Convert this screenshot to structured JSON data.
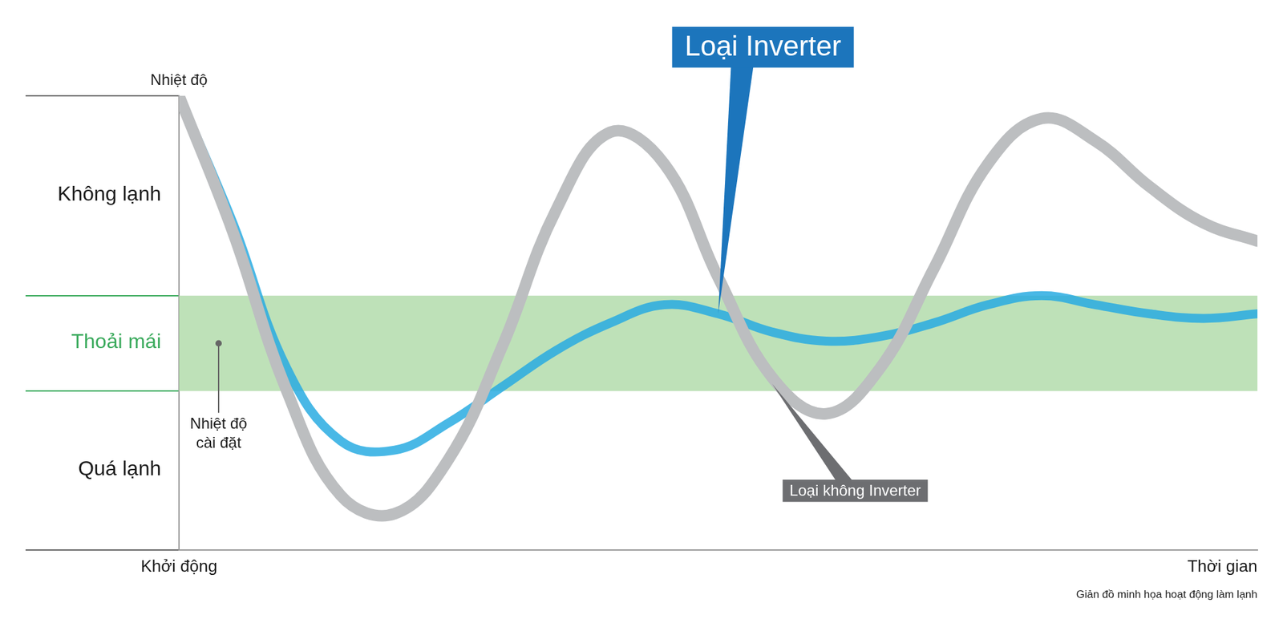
{
  "chart_data": {
    "type": "line",
    "y_label": "Nhiệt độ",
    "x_label": "Thời gian",
    "start_label": "Khởi động",
    "set_point_label": "Nhiệt độ cài đặt",
    "caption": "Giản đồ minh họa hoạt động làm lạnh",
    "x": [
      0,
      5,
      10,
      15,
      20,
      25,
      30,
      35,
      40,
      45,
      50,
      55,
      60,
      65,
      70,
      75,
      80,
      85,
      90,
      95,
      100
    ],
    "xlim": [
      0,
      100
    ],
    "ylim": [
      0,
      100
    ],
    "yticks": [
      0,
      35,
      56,
      100
    ],
    "grid": true,
    "tick_labels": false,
    "zones": [
      {
        "label": "Không lạnh",
        "from": 56,
        "to": 100
      },
      {
        "label": "Thoải mái",
        "from": 35,
        "to": 56,
        "color": "#b3dcab"
      },
      {
        "label": "Quá lạnh",
        "from": 0,
        "to": 35
      }
    ],
    "series": [
      {
        "name": "Loại không Inverter",
        "color": "#bcbec0",
        "values": [
          100,
          70,
          35,
          12,
          8,
          20,
          45,
          75,
          92,
          85,
          60,
          38,
          30,
          40,
          62,
          85,
          95,
          90,
          80,
          72,
          68
        ]
      },
      {
        "name": "Loại Inverter",
        "color": "#29abe2",
        "values": [
          100,
          72,
          40,
          24,
          22,
          28,
          36,
          44,
          50,
          54,
          52,
          48,
          46,
          47,
          50,
          54,
          56,
          54,
          52,
          51,
          52
        ]
      }
    ]
  }
}
